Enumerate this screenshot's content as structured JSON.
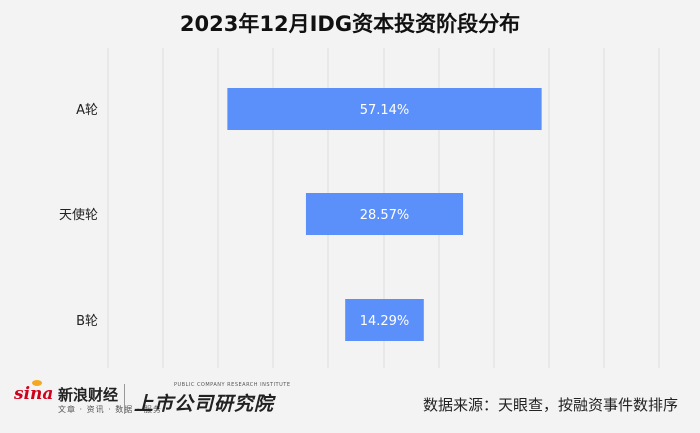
{
  "chart_data": {
    "type": "bar",
    "orientation": "horizontal-funnel",
    "title": "2023年12月IDG资本投资阶段分布",
    "categories": [
      "A轮",
      "天使轮",
      "B轮"
    ],
    "values": [
      57.14,
      28.57,
      14.29
    ],
    "value_labels": [
      "57.14%",
      "28.57%",
      "14.29%"
    ],
    "xlim": [
      0,
      100
    ],
    "grid": true,
    "bar_color": "#5b8ff9"
  },
  "footer": {
    "source": "数据来源：天眼查，按融资事件数排序",
    "logo_sina": "sina",
    "logo_sina_name": "新浪财经",
    "logo_sina_sub": "文章 · 资讯 · 数据 · 服务",
    "logo_institute_en": "PUBLIC COMPANY RESEARCH INSTITUTE",
    "logo_institute_cn": "上市公司研究院"
  }
}
